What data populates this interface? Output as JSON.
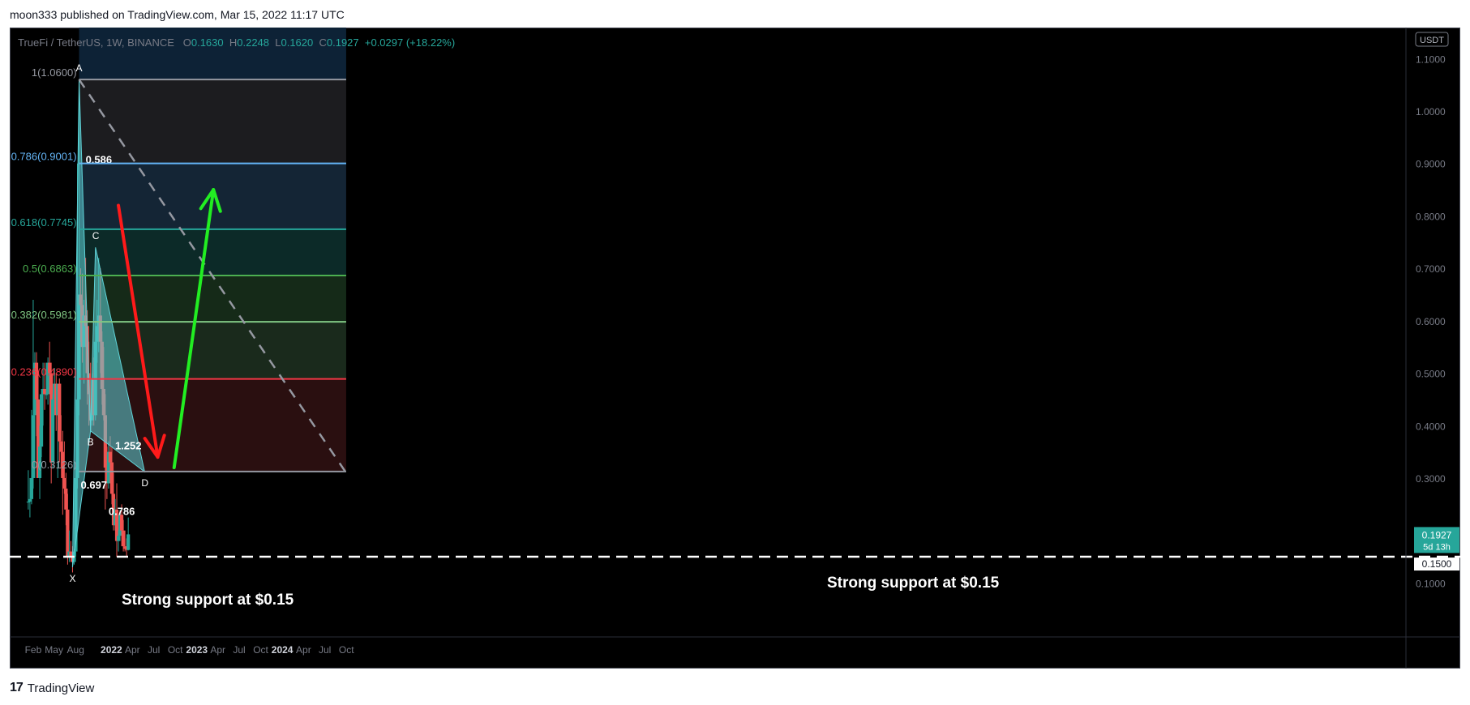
{
  "header": {
    "publisher_line": "moon333 published on TradingView.com, Mar 15, 2022 11:17 UTC"
  },
  "legend": {
    "symbol": "TrueFi / TetherUS, 1W, BINANCE",
    "o_label": "O",
    "o_value": "0.1630",
    "h_label": "H",
    "h_value": "0.2248",
    "l_label": "L",
    "l_value": "0.1620",
    "c_label": "C",
    "c_value": "0.1927",
    "change": "+0.0297 (+18.22%)"
  },
  "footer": {
    "logo": "17",
    "brand": "TradingView"
  },
  "annotations": {
    "support_left": "Strong support at $0.15",
    "support_right": "Strong support at $0.15"
  },
  "colors": {
    "up": "#26a69a",
    "down": "#ef5350",
    "arrow_down": "#ff1a1a",
    "arrow_up": "#22ee22",
    "pattern": "#5fd3d8",
    "fib_786": "#64b5f6",
    "fib_618": "#26a69a",
    "fib_5": "#4caf50",
    "fib_382": "#81c784",
    "fib_236": "#f23645",
    "fib_line": "#9598a1"
  },
  "chart_data": {
    "type": "candlestick",
    "symbol": "TrueFi / TetherUS",
    "interval": "1W",
    "exchange": "BINANCE",
    "y_unit": "USDT",
    "y_ticks": [
      "1.1000",
      "1.0000",
      "0.9000",
      "0.8000",
      "0.7000",
      "0.6000",
      "0.5000",
      "0.4000",
      "0.3000",
      "0.1000"
    ],
    "y_tick_values": [
      1.1,
      1.0,
      0.9,
      0.8,
      0.7,
      0.6,
      0.5,
      0.4,
      0.3,
      0.1
    ],
    "x_ticks": [
      "Feb",
      "May",
      "Aug",
      "2022",
      "Apr",
      "Jul",
      "Oct",
      "2023",
      "Apr",
      "Jul",
      "Oct",
      "2024",
      "Apr",
      "Jul",
      "Oct"
    ],
    "x_tick_dates": [
      "2021-02-01",
      "2021-05-01",
      "2021-08-01",
      "2022-01-01",
      "2022-04-01",
      "2022-07-01",
      "2022-10-01",
      "2023-01-01",
      "2023-04-01",
      "2023-07-01",
      "2023-10-01",
      "2024-01-01",
      "2024-04-01",
      "2024-07-01",
      "2024-10-01"
    ],
    "x_ticks_bold": [
      "2022",
      "2023",
      "2024"
    ],
    "last_price": "0.1927",
    "countdown": "5d 13h",
    "support_price": "0.1500",
    "candles": [
      {
        "date": "2021-01-11",
        "o": 0.255,
        "h": 0.315,
        "l": 0.24,
        "c": 0.255
      },
      {
        "date": "2021-01-18",
        "o": 0.255,
        "h": 0.3,
        "l": 0.225,
        "c": 0.26
      },
      {
        "date": "2021-01-25",
        "o": 0.26,
        "h": 0.43,
        "l": 0.25,
        "c": 0.3
      },
      {
        "date": "2021-02-01",
        "o": 0.3,
        "h": 0.64,
        "l": 0.28,
        "c": 0.42
      },
      {
        "date": "2021-02-08",
        "o": 0.42,
        "h": 0.54,
        "l": 0.3,
        "c": 0.52
      },
      {
        "date": "2021-02-15",
        "o": 0.52,
        "h": 0.54,
        "l": 0.38,
        "c": 0.45
      },
      {
        "date": "2021-02-22",
        "o": 0.45,
        "h": 0.5,
        "l": 0.3,
        "c": 0.3
      },
      {
        "date": "2021-03-01",
        "o": 0.3,
        "h": 0.4,
        "l": 0.26,
        "c": 0.36
      },
      {
        "date": "2021-03-08",
        "o": 0.36,
        "h": 0.47,
        "l": 0.34,
        "c": 0.46
      },
      {
        "date": "2021-03-15",
        "o": 0.46,
        "h": 0.52,
        "l": 0.4,
        "c": 0.47
      },
      {
        "date": "2021-03-22",
        "o": 0.47,
        "h": 0.52,
        "l": 0.43,
        "c": 0.46
      },
      {
        "date": "2021-03-29",
        "o": 0.46,
        "h": 0.52,
        "l": 0.45,
        "c": 0.46
      },
      {
        "date": "2021-04-05",
        "o": 0.46,
        "h": 0.53,
        "l": 0.44,
        "c": 0.52
      },
      {
        "date": "2021-04-12",
        "o": 0.52,
        "h": 0.56,
        "l": 0.46,
        "c": 0.5
      },
      {
        "date": "2021-04-19",
        "o": 0.5,
        "h": 0.52,
        "l": 0.29,
        "c": 0.33
      },
      {
        "date": "2021-04-26",
        "o": 0.33,
        "h": 0.46,
        "l": 0.32,
        "c": 0.45
      },
      {
        "date": "2021-05-03",
        "o": 0.45,
        "h": 0.51,
        "l": 0.42,
        "c": 0.48
      },
      {
        "date": "2021-05-10",
        "o": 0.48,
        "h": 0.5,
        "l": 0.39,
        "c": 0.42
      },
      {
        "date": "2021-05-17",
        "o": 0.42,
        "h": 0.48,
        "l": 0.3,
        "c": 0.48
      },
      {
        "date": "2021-05-24",
        "o": 0.48,
        "h": 0.49,
        "l": 0.33,
        "c": 0.37
      },
      {
        "date": "2021-05-31",
        "o": 0.37,
        "h": 0.42,
        "l": 0.32,
        "c": 0.35
      },
      {
        "date": "2021-06-07",
        "o": 0.35,
        "h": 0.39,
        "l": 0.23,
        "c": 0.3
      },
      {
        "date": "2021-06-14",
        "o": 0.3,
        "h": 0.37,
        "l": 0.27,
        "c": 0.28
      },
      {
        "date": "2021-06-21",
        "o": 0.28,
        "h": 0.31,
        "l": 0.21,
        "c": 0.24
      },
      {
        "date": "2021-06-28",
        "o": 0.24,
        "h": 0.27,
        "l": 0.135,
        "c": 0.15
      },
      {
        "date": "2021-07-05",
        "o": 0.15,
        "h": 0.2,
        "l": 0.14,
        "c": 0.16
      },
      {
        "date": "2021-07-12",
        "o": 0.16,
        "h": 0.18,
        "l": 0.14,
        "c": 0.15
      },
      {
        "date": "2021-07-19",
        "o": 0.15,
        "h": 0.17,
        "l": 0.12,
        "c": 0.14
      },
      {
        "date": "2021-07-26",
        "o": 0.14,
        "h": 0.165,
        "l": 0.135,
        "c": 0.16
      },
      {
        "date": "2021-08-02",
        "o": 0.16,
        "h": 0.33,
        "l": 0.15,
        "c": 0.3
      },
      {
        "date": "2021-08-09",
        "o": 0.3,
        "h": 0.9,
        "l": 0.28,
        "c": 0.45
      },
      {
        "date": "2021-08-16",
        "o": 0.45,
        "h": 1.06,
        "l": 0.42,
        "c": 0.65
      },
      {
        "date": "2021-08-23",
        "o": 0.65,
        "h": 0.7,
        "l": 0.56,
        "c": 0.63
      },
      {
        "date": "2021-08-30",
        "o": 0.63,
        "h": 0.69,
        "l": 0.52,
        "c": 0.55
      },
      {
        "date": "2021-09-06",
        "o": 0.55,
        "h": 0.64,
        "l": 0.48,
        "c": 0.61
      },
      {
        "date": "2021-09-13",
        "o": 0.61,
        "h": 0.72,
        "l": 0.55,
        "c": 0.59
      },
      {
        "date": "2021-09-20",
        "o": 0.59,
        "h": 0.62,
        "l": 0.44,
        "c": 0.5
      },
      {
        "date": "2021-09-27",
        "o": 0.5,
        "h": 0.56,
        "l": 0.4,
        "c": 0.46
      },
      {
        "date": "2021-10-04",
        "o": 0.46,
        "h": 0.52,
        "l": 0.39,
        "c": 0.41
      },
      {
        "date": "2021-10-11",
        "o": 0.41,
        "h": 0.5,
        "l": 0.4,
        "c": 0.49
      },
      {
        "date": "2021-10-18",
        "o": 0.49,
        "h": 0.53,
        "l": 0.4,
        "c": 0.42
      },
      {
        "date": "2021-10-25",
        "o": 0.42,
        "h": 0.6,
        "l": 0.41,
        "c": 0.56
      },
      {
        "date": "2021-11-01",
        "o": 0.56,
        "h": 0.64,
        "l": 0.52,
        "c": 0.59
      },
      {
        "date": "2021-11-08",
        "o": 0.59,
        "h": 0.72,
        "l": 0.54,
        "c": 0.61
      },
      {
        "date": "2021-11-15",
        "o": 0.61,
        "h": 0.7,
        "l": 0.5,
        "c": 0.56
      },
      {
        "date": "2021-11-22",
        "o": 0.56,
        "h": 0.58,
        "l": 0.44,
        "c": 0.47
      },
      {
        "date": "2021-11-29",
        "o": 0.47,
        "h": 0.55,
        "l": 0.41,
        "c": 0.42
      },
      {
        "date": "2021-12-06",
        "o": 0.42,
        "h": 0.46,
        "l": 0.24,
        "c": 0.32
      },
      {
        "date": "2021-12-13",
        "o": 0.32,
        "h": 0.36,
        "l": 0.26,
        "c": 0.29
      },
      {
        "date": "2021-12-20",
        "o": 0.29,
        "h": 0.37,
        "l": 0.28,
        "c": 0.35
      },
      {
        "date": "2021-12-27",
        "o": 0.35,
        "h": 0.38,
        "l": 0.29,
        "c": 0.33
      },
      {
        "date": "2022-01-03",
        "o": 0.33,
        "h": 0.36,
        "l": 0.25,
        "c": 0.27
      },
      {
        "date": "2022-01-10",
        "o": 0.27,
        "h": 0.31,
        "l": 0.2,
        "c": 0.21
      },
      {
        "date": "2022-01-17",
        "o": 0.21,
        "h": 0.26,
        "l": 0.2,
        "c": 0.24
      },
      {
        "date": "2022-01-24",
        "o": 0.24,
        "h": 0.29,
        "l": 0.15,
        "c": 0.18
      },
      {
        "date": "2022-01-31",
        "o": 0.18,
        "h": 0.2,
        "l": 0.16,
        "c": 0.19
      },
      {
        "date": "2022-02-07",
        "o": 0.19,
        "h": 0.24,
        "l": 0.18,
        "c": 0.23
      },
      {
        "date": "2022-02-14",
        "o": 0.23,
        "h": 0.25,
        "l": 0.17,
        "c": 0.2
      },
      {
        "date": "2022-02-21",
        "o": 0.2,
        "h": 0.22,
        "l": 0.16,
        "c": 0.17
      },
      {
        "date": "2022-02-28",
        "o": 0.17,
        "h": 0.2,
        "l": 0.16,
        "c": 0.165
      },
      {
        "date": "2022-03-07",
        "o": 0.165,
        "h": 0.185,
        "l": 0.15,
        "c": 0.163
      },
      {
        "date": "2022-03-14",
        "o": 0.163,
        "h": 0.2248,
        "l": 0.162,
        "c": 0.1927
      }
    ],
    "fibonacci": [
      {
        "ratio_label": "1(1.0600)",
        "value": 1.06,
        "color": "#9598a1"
      },
      {
        "ratio_label": "0.786(0.9001)",
        "value": 0.9001,
        "color": "#64b5f6"
      },
      {
        "ratio_label": "0.618(0.7745)",
        "value": 0.7745,
        "color": "#26a69a"
      },
      {
        "ratio_label": "0.5(0.6863)",
        "value": 0.6863,
        "color": "#4caf50"
      },
      {
        "ratio_label": "0.382(0.5981)",
        "value": 0.5981,
        "color": "#81c784"
      },
      {
        "ratio_label": "0.236(0.4890)",
        "value": 0.489,
        "color": "#f23645"
      },
      {
        "ratio_label": "0(0.3126)",
        "value": 0.3126,
        "color": "#9598a1"
      }
    ],
    "fib_range": {
      "start": "2021-08-16",
      "end": "2024-09-30"
    },
    "harmonic_pattern": {
      "points": [
        {
          "label": "X",
          "date": "2021-07-19",
          "value": 0.13
        },
        {
          "label": "A",
          "date": "2021-08-16",
          "value": 1.06
        },
        {
          "label": "B",
          "date": "2021-10-04",
          "value": 0.39
        },
        {
          "label": "C",
          "date": "2021-10-25",
          "value": 0.74
        },
        {
          "label": "D",
          "date": "2022-05-23",
          "value": 0.312
        }
      ],
      "ratios": [
        {
          "label": "0.586",
          "date": "2021-08-30",
          "value": 0.9
        },
        {
          "label": "0.697",
          "date": "2021-08-09",
          "value": 0.28
        },
        {
          "label": "0.786",
          "date": "2021-12-06",
          "value": 0.23
        },
        {
          "label": "1.252",
          "date": "2022-01-03",
          "value": 0.355
        }
      ]
    },
    "trendline": {
      "from": {
        "date": "2021-08-16",
        "value": 1.06
      },
      "to": {
        "date": "2024-09-30",
        "value": 0.31
      },
      "style": "dashed"
    },
    "arrows": [
      {
        "from": {
          "date": "2022-01-31",
          "value": 0.82
        },
        "to": {
          "date": "2022-07-18",
          "value": 0.34
        },
        "direction": "down"
      },
      {
        "from": {
          "date": "2022-09-26",
          "value": 0.32
        },
        "to": {
          "date": "2023-03-13",
          "value": 0.85
        },
        "direction": "up"
      }
    ],
    "support_line": {
      "value": 0.15,
      "style": "dashed"
    }
  }
}
